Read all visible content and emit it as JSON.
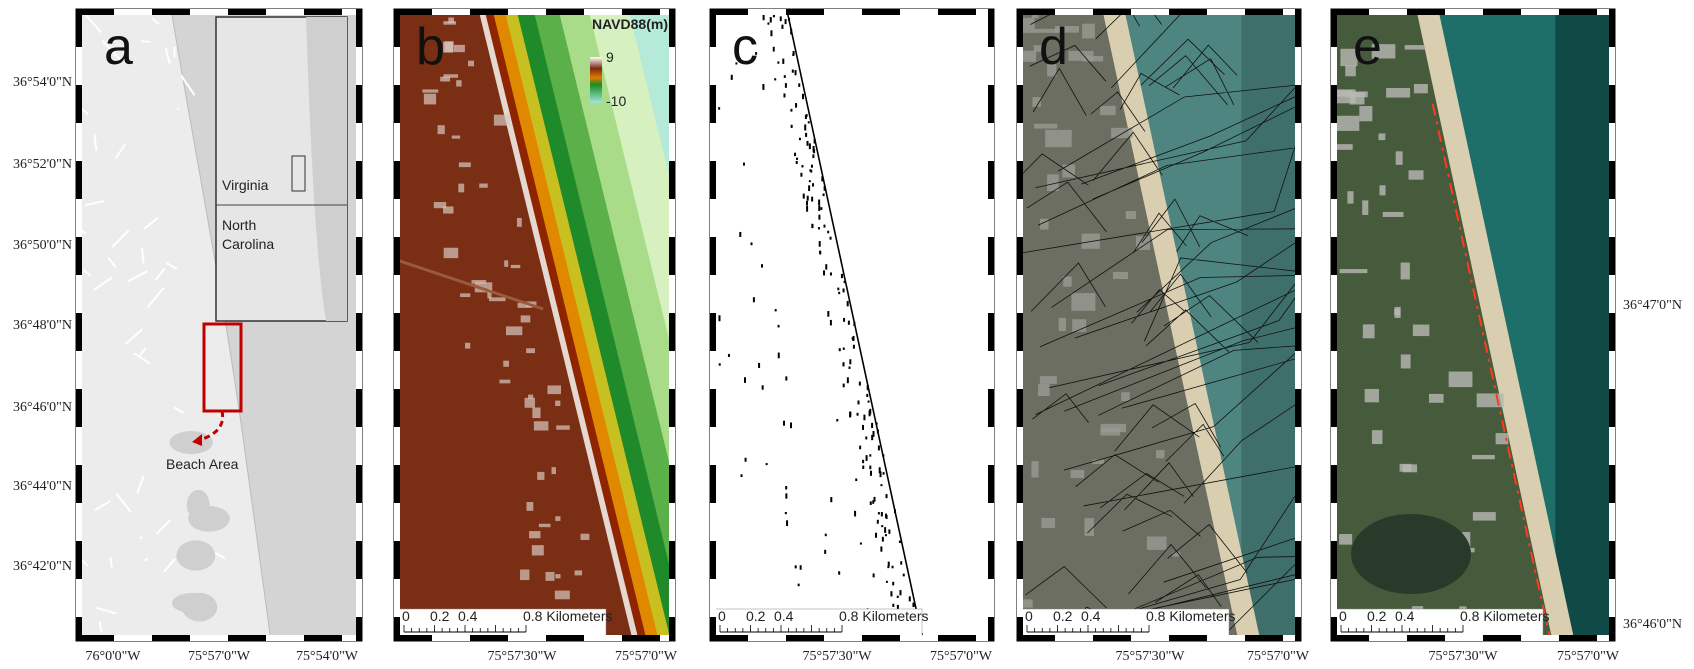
{
  "panels": [
    {
      "label": "a",
      "lat_labels": [
        "36°54'0\"N",
        "36°52'0\"N",
        "36°50'0\"N",
        "36°48'0\"N",
        "36°46'0\"N",
        "36°44'0\"N",
        "36°42'0\"N"
      ],
      "lon_labels": [
        "76°0'0\"W",
        "75°57'0\"W",
        "75°54'0\"W"
      ],
      "inset_labels": {
        "virginia": "Virginia",
        "north_carolina": [
          "North",
          "Carolina"
        ]
      },
      "callout": "Beach Area"
    },
    {
      "label": "b",
      "legend": {
        "title": "NAVD88(m)",
        "max": "9",
        "min": "-10"
      },
      "scale_labels": [
        "0",
        "0.2",
        "0.4",
        "0.8 Kilometers"
      ],
      "lon_labels": [
        "75°57'30\"W",
        "75°57'0\"W"
      ]
    },
    {
      "label": "c",
      "scale_labels": [
        "0",
        "0.2",
        "0.4",
        "0.8 Kilometers"
      ],
      "lon_labels": [
        "75°57'30\"W",
        "75°57'0\"W"
      ]
    },
    {
      "label": "d",
      "scale_labels": [
        "0",
        "0.2",
        "0.4",
        "0.8 Kilometers"
      ],
      "lon_labels": [
        "75°57'30\"W",
        "75°57'0\"W"
      ]
    },
    {
      "label": "e",
      "scale_labels": [
        "0",
        "0.2",
        "0.4",
        "0.8 Kilometers"
      ],
      "lon_labels": [
        "75°57'30\"W",
        "75°57'0\"W"
      ],
      "lat_labels_right": [
        "36°47'0\"N",
        "36°46'0\"N"
      ]
    }
  ]
}
